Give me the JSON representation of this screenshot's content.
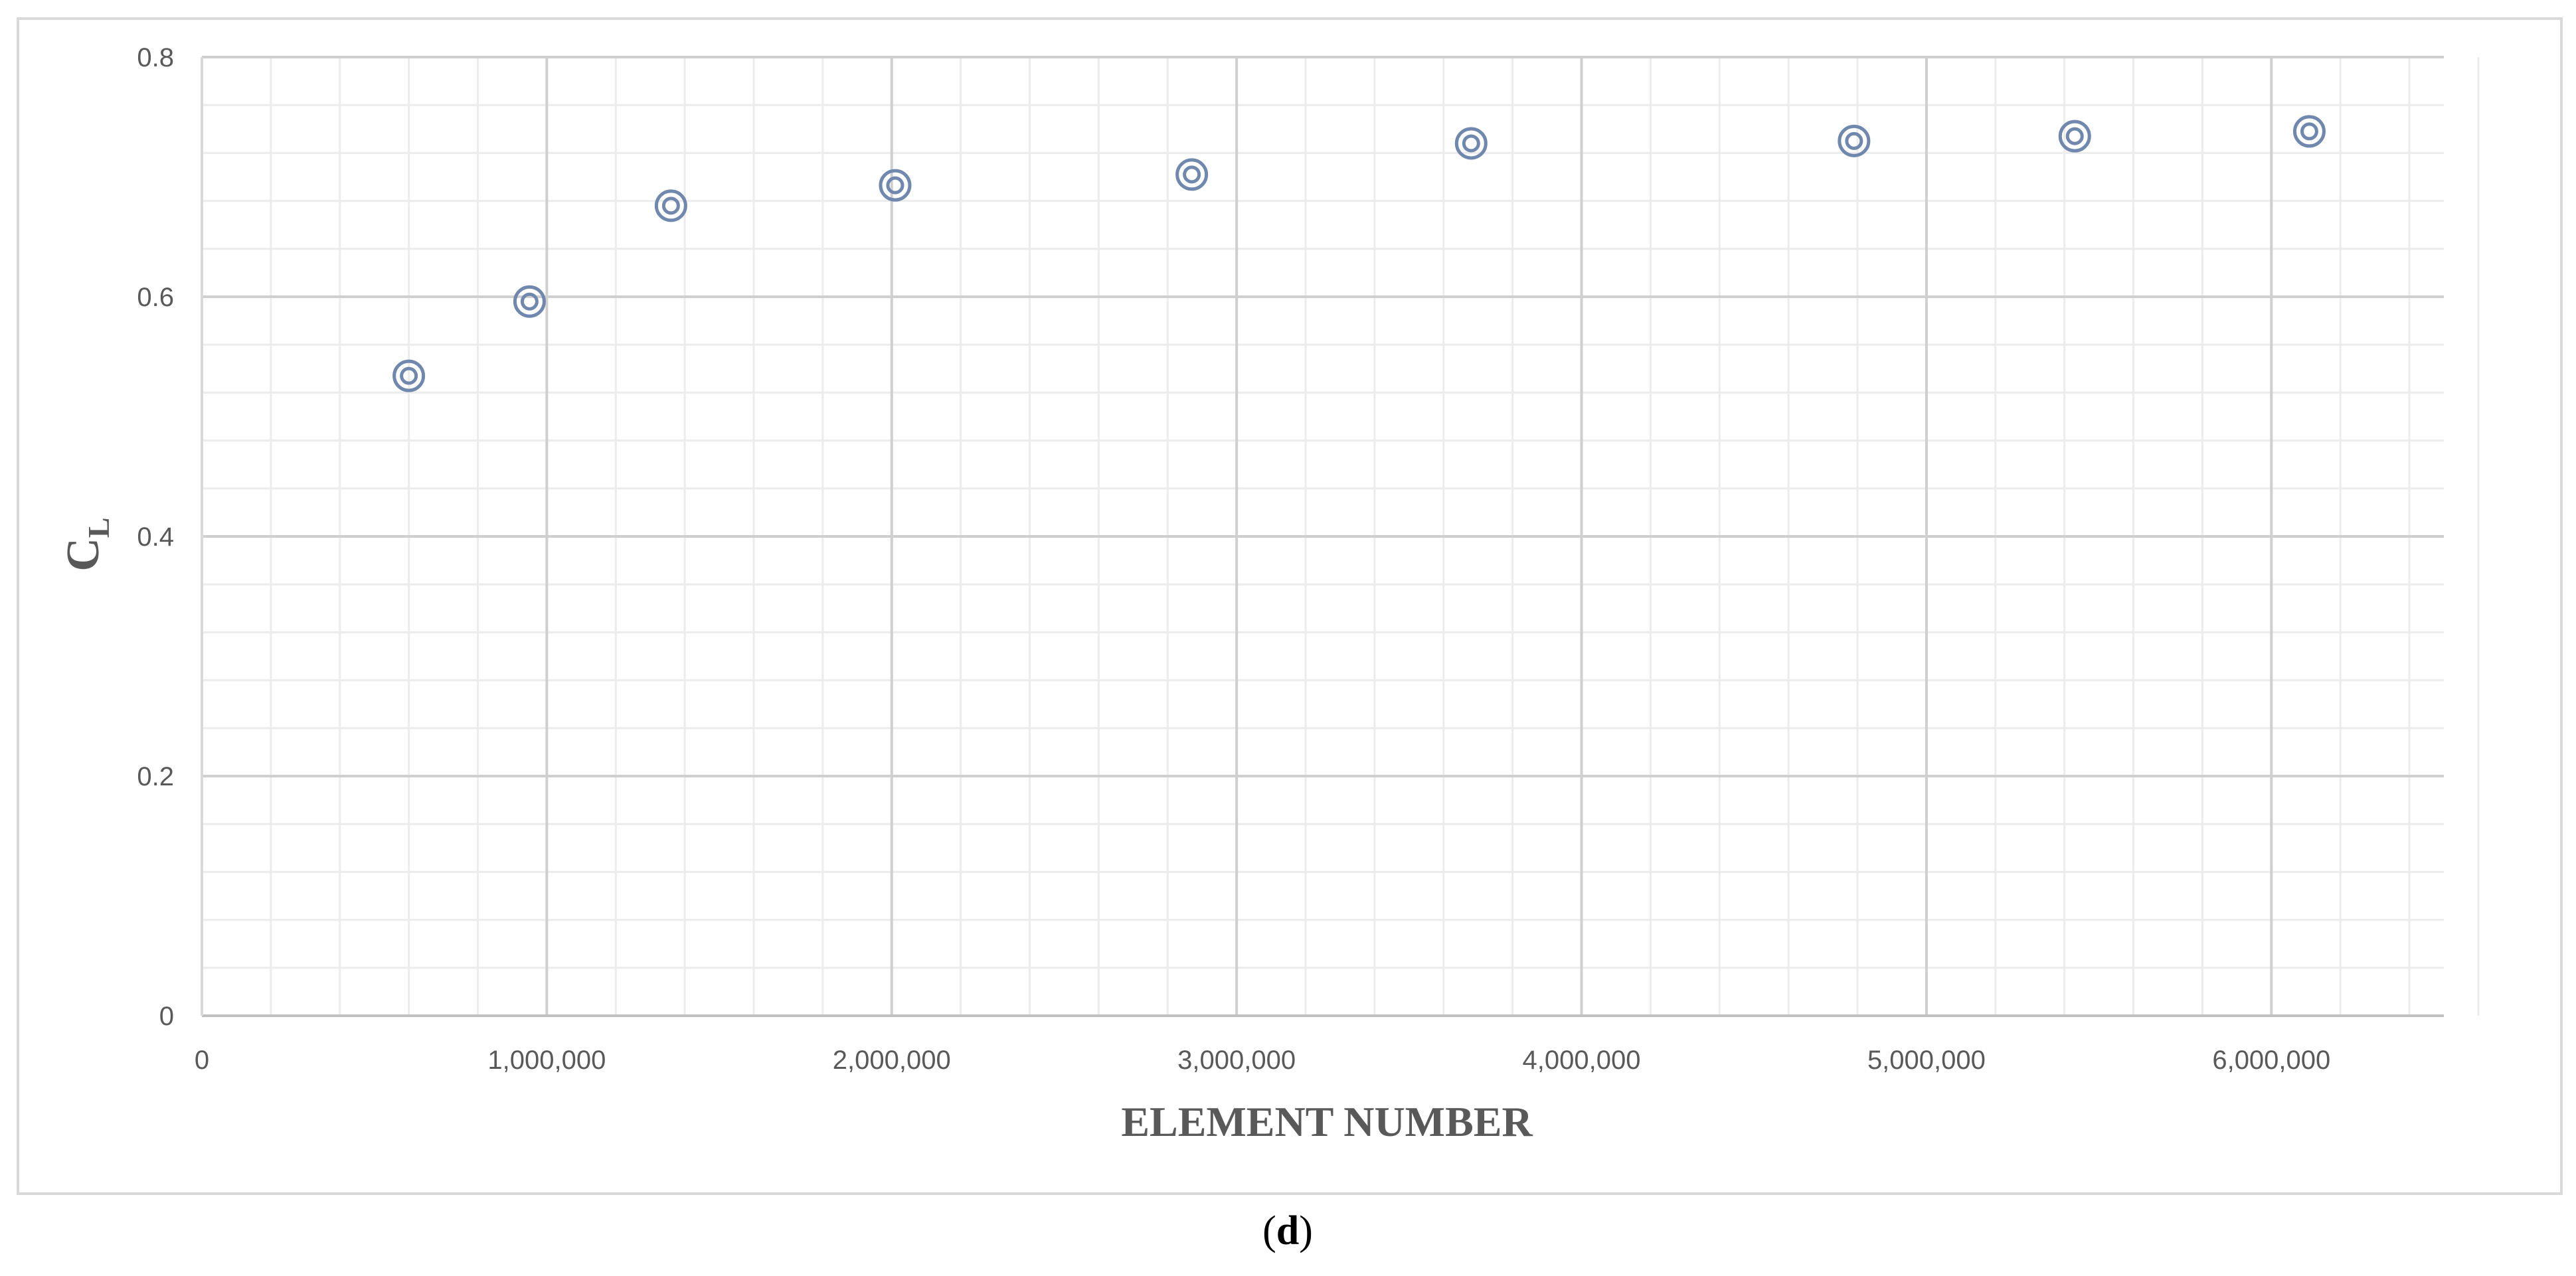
{
  "chart_data": {
    "type": "scatter",
    "xlabel": "ELEMENT NUMBER",
    "ylabel": {
      "main": "C",
      "sub": "L"
    },
    "xlim": [
      0,
      6500000
    ],
    "ylim": [
      0,
      0.8
    ],
    "x_ticks": [
      0,
      1000000,
      2000000,
      3000000,
      4000000,
      5000000,
      6000000
    ],
    "x_tick_labels": [
      "0",
      "1,000,000",
      "2,000,000",
      "3,000,000",
      "4,000,000",
      "5,000,000",
      "6,000,000"
    ],
    "y_ticks": [
      0,
      0.2,
      0.4,
      0.6,
      0.8
    ],
    "y_tick_labels": [
      "0",
      "0.2",
      "0.4",
      "0.6",
      "0.8"
    ],
    "x_minor_step": 200000,
    "y_minor_step": 0.04,
    "grid": true,
    "marker": "double-circle",
    "marker_color": "#7088ad",
    "series": [
      {
        "x": [
          600000,
          950000,
          1360000,
          2010000,
          2870000,
          3680000,
          4790000,
          5430000,
          6110000
        ],
        "y": [
          0.534,
          0.596,
          0.676,
          0.693,
          0.702,
          0.728,
          0.73,
          0.734,
          0.738
        ]
      }
    ]
  },
  "caption": {
    "open": "(",
    "letter": "d",
    "close": ")"
  }
}
